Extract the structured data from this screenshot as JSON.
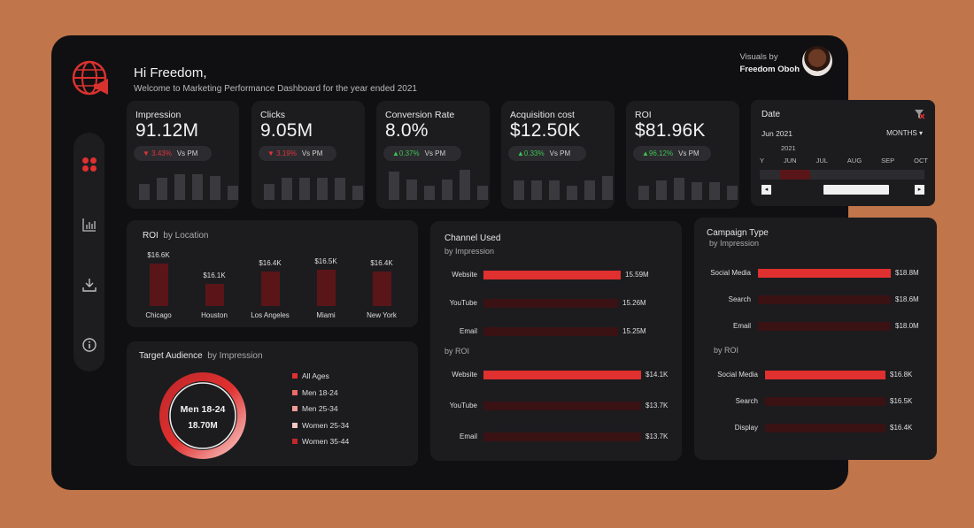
{
  "header": {
    "greeting": "Hi Freedom,",
    "subtitle": "Welcome to Marketing Performance Dashboard for the year ended 2021",
    "visuals_by_label": "Visuals by",
    "author": "Freedom Oboh"
  },
  "sidebar": {
    "icons": [
      "dashboard-icon",
      "bar-chart-icon",
      "download-icon",
      "info-icon"
    ]
  },
  "kpis": [
    {
      "title": "Impression",
      "value": "91.12M",
      "change": "3.43%",
      "dir": "down",
      "vs": "Vs PM",
      "trend": [
        0.5,
        0.7,
        0.8,
        0.8,
        0.75,
        0.45
      ]
    },
    {
      "title": "Clicks",
      "value": "9.05M",
      "change": "3.19%",
      "dir": "down",
      "vs": "Vs PM",
      "trend": [
        0.5,
        0.7,
        0.7,
        0.7,
        0.7,
        0.45
      ]
    },
    {
      "title": "Conversion Rate",
      "value": "8.0%",
      "change": "0.37%",
      "dir": "up",
      "vs": "Vs PM",
      "trend": [
        0.9,
        0.65,
        0.45,
        0.65,
        0.95,
        0.45
      ]
    },
    {
      "title": "Acquisition cost",
      "value": "$12.50K",
      "change": "0.33%",
      "dir": "up",
      "vs": "Vs PM",
      "trend": [
        0.6,
        0.6,
        0.6,
        0.45,
        0.6,
        0.75
      ]
    },
    {
      "title": "ROI",
      "value": "$81.96K",
      "change": "96.12%",
      "dir": "up",
      "vs": "Vs PM",
      "trend": [
        0.45,
        0.6,
        0.7,
        0.55,
        0.55,
        0.45
      ]
    }
  ],
  "date_filter": {
    "title": "Date",
    "selected": "Jun 2021",
    "period": "MONTHS",
    "year": "2021",
    "months": [
      "Y",
      "JUN",
      "JUL",
      "AUG",
      "SEP",
      "OCT"
    ]
  },
  "roi_location": {
    "title": "ROI",
    "title_sub": "by Location",
    "items": [
      {
        "label": "Chicago",
        "value": "$16.6K",
        "num": 16.6
      },
      {
        "label": "Houston",
        "value": "$16.1K",
        "num": 16.1
      },
      {
        "label": "Los Angeles",
        "value": "$16.4K",
        "num": 16.4
      },
      {
        "label": "Miami",
        "value": "$16.5K",
        "num": 16.5
      },
      {
        "label": "New York",
        "value": "$16.4K",
        "num": 16.4
      }
    ]
  },
  "target_audience": {
    "title": "Target Audience",
    "title_sub": "by Impression",
    "center_label": "Men 18-24",
    "center_value": "18.70M",
    "legend": [
      {
        "label": "All Ages",
        "color": "#e0302f"
      },
      {
        "label": "Men 18-24",
        "color": "#ee6a66"
      },
      {
        "label": "Men 25-34",
        "color": "#f39b97"
      },
      {
        "label": "Women 25-34",
        "color": "#f7c6c3"
      },
      {
        "label": "Women 35-44",
        "color": "#c0282a"
      }
    ]
  },
  "channel_used": {
    "title": "Channel Used",
    "impression_label": "by Impression",
    "roi_label": "by ROI",
    "impression": [
      {
        "label": "Website",
        "value": "15.59M",
        "frac": 1.0
      },
      {
        "label": "YouTube",
        "value": "15.26M",
        "frac": 0.0
      },
      {
        "label": "Email",
        "value": "15.25M",
        "frac": 0.0
      }
    ],
    "roi": [
      {
        "label": "Website",
        "value": "$14.1K",
        "frac": 1.0
      },
      {
        "label": "YouTube",
        "value": "$13.7K",
        "frac": 0.0
      },
      {
        "label": "Email",
        "value": "$13.7K",
        "frac": 0.0
      }
    ]
  },
  "campaign_type": {
    "title": "Campaign Type",
    "impression_label": "by Impression",
    "roi_label": "by ROI",
    "impression": [
      {
        "label": "Social Media",
        "value": "$18.8M",
        "frac": 1.0
      },
      {
        "label": "Search",
        "value": "$18.6M",
        "frac": 0.0
      },
      {
        "label": "Email",
        "value": "$18.0M",
        "frac": 0.0
      }
    ],
    "roi": [
      {
        "label": "Social Media",
        "value": "$16.8K",
        "frac": 1.0
      },
      {
        "label": "Search",
        "value": "$16.5K",
        "frac": 0.0
      },
      {
        "label": "Display",
        "value": "$16.4K",
        "frac": 0.0
      }
    ]
  },
  "colors": {
    "accent": "#e0302f",
    "dark_accent": "#5a1518",
    "up": "#3fc452",
    "down": "#e0333a"
  }
}
